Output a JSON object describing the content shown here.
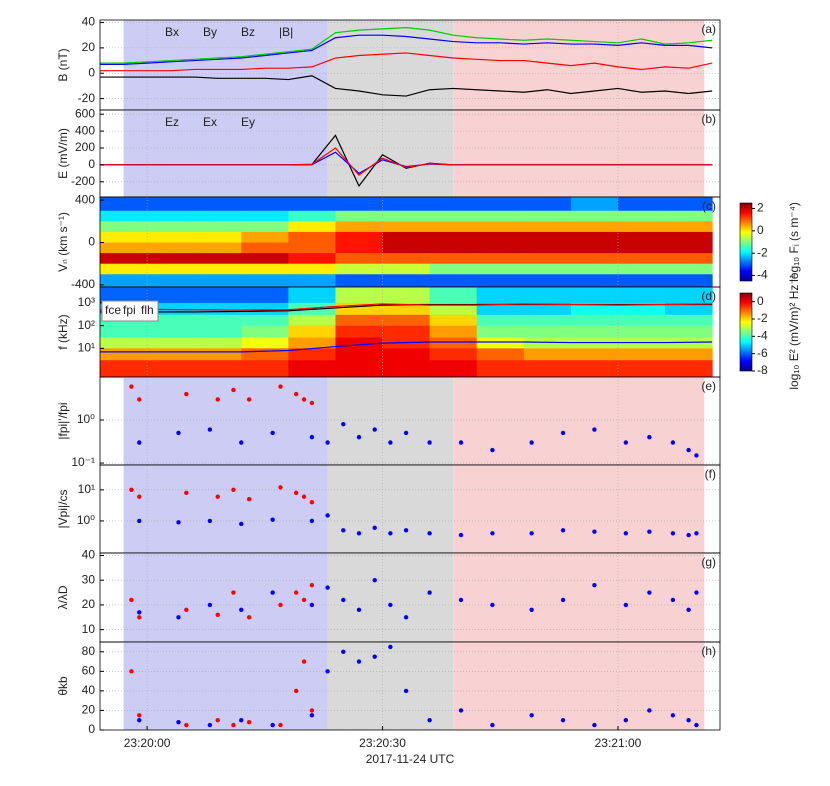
{
  "chart_data": [
    {
      "type": "line",
      "label": "(a)",
      "ylabel": "B (nT)",
      "ylim": [
        -29,
        42
      ],
      "yticks": [
        40,
        20,
        0,
        -20
      ],
      "grid": true,
      "x": [
        "23:19:54",
        "23:19:57",
        "23:20:00",
        "23:20:03",
        "23:20:06",
        "23:20:09",
        "23:20:12",
        "23:20:15",
        "23:20:18",
        "23:20:21",
        "23:20:24",
        "23:20:27",
        "23:20:30",
        "23:20:33",
        "23:20:36",
        "23:20:39",
        "23:20:42",
        "23:20:45",
        "23:20:48",
        "23:20:51",
        "23:20:54",
        "23:20:57",
        "23:21:00",
        "23:21:03",
        "23:21:06",
        "23:21:09",
        "23:21:12"
      ],
      "series": [
        {
          "name": "Bx",
          "color": "#000000",
          "values": [
            -3,
            -3,
            -3,
            -3,
            -3,
            -4,
            -4,
            -4,
            -5,
            -2,
            -12,
            -14,
            -17,
            -18,
            -13,
            -12,
            -13,
            -14,
            -15,
            -13,
            -16,
            -14,
            -12,
            -15,
            -14,
            -16,
            -14
          ]
        },
        {
          "name": "By",
          "color": "#0000ff",
          "values": [
            7,
            7,
            8,
            9,
            10,
            11,
            12,
            14,
            16,
            18,
            28,
            30,
            30,
            29,
            27,
            25,
            24,
            24,
            23,
            24,
            23,
            23,
            22,
            24,
            22,
            22,
            20
          ]
        },
        {
          "name": "Bz",
          "color": "#ff0000",
          "values": [
            2,
            2,
            2,
            2,
            3,
            3,
            3,
            4,
            4,
            5,
            12,
            14,
            15,
            16,
            14,
            12,
            11,
            10,
            10,
            8,
            6,
            8,
            5,
            3,
            5,
            4,
            8
          ]
        },
        {
          "name": "|B|",
          "color": "#00cc00",
          "values": [
            8,
            8,
            9,
            10,
            11,
            12,
            13,
            15,
            17,
            19,
            32,
            34,
            35,
            36,
            34,
            30,
            28,
            27,
            26,
            27,
            26,
            25,
            24,
            27,
            23,
            24,
            26
          ]
        }
      ]
    },
    {
      "type": "line",
      "label": "(b)",
      "ylabel": "E (mV/m)",
      "ylim": [
        -380,
        650
      ],
      "yticks": [
        600,
        400,
        200,
        0,
        -200
      ],
      "grid": true,
      "x": [
        "23:19:54",
        "23:19:57",
        "23:20:00",
        "23:20:03",
        "23:20:06",
        "23:20:09",
        "23:20:12",
        "23:20:15",
        "23:20:18",
        "23:20:21",
        "23:20:24",
        "23:20:27",
        "23:20:30",
        "23:20:33",
        "23:20:36",
        "23:20:39",
        "23:20:42",
        "23:20:45",
        "23:20:48",
        "23:20:51",
        "23:20:54",
        "23:20:57",
        "23:21:00",
        "23:21:03",
        "23:21:06",
        "23:21:09",
        "23:21:12"
      ],
      "series": [
        {
          "name": "Ez",
          "color": "#000000",
          "values": [
            0,
            0,
            0,
            0,
            0,
            0,
            0,
            0,
            0,
            5,
            350,
            -250,
            120,
            -40,
            20,
            0,
            0,
            0,
            0,
            0,
            0,
            0,
            0,
            0,
            0,
            0,
            0
          ]
        },
        {
          "name": "Ex",
          "color": "#0000ff",
          "values": [
            0,
            0,
            0,
            0,
            0,
            0,
            0,
            0,
            0,
            3,
            150,
            -100,
            60,
            -20,
            10,
            0,
            0,
            0,
            0,
            0,
            0,
            0,
            0,
            0,
            0,
            0,
            0
          ]
        },
        {
          "name": "Ey",
          "color": "#ff0000",
          "values": [
            0,
            0,
            0,
            0,
            0,
            0,
            0,
            0,
            0,
            8,
            200,
            -120,
            80,
            -30,
            15,
            0,
            0,
            0,
            0,
            0,
            0,
            0,
            0,
            0,
            0,
            0,
            0
          ]
        }
      ]
    },
    {
      "type": "heatmap",
      "label": "(c)",
      "ylabel": "Vₙ (km s⁻¹)",
      "ylim": [
        -420,
        430
      ],
      "yticks": [
        400,
        0,
        -400
      ],
      "clabel": "log₁₀ Fᵢ  (s m⁻⁴)",
      "clim": [
        -4.5,
        2.5
      ],
      "cticks": [
        2,
        0,
        -2,
        -4
      ],
      "x_edges": [
        "23:19:54",
        "23:20:00",
        "23:20:06",
        "23:20:12",
        "23:20:18",
        "23:20:24",
        "23:20:30",
        "23:20:36",
        "23:20:42",
        "23:20:48",
        "23:20:54",
        "23:21:00",
        "23:21:06",
        "23:21:12"
      ],
      "y_edges": [
        430,
        300,
        200,
        100,
        0,
        -100,
        -200,
        -300,
        -420
      ],
      "z": [
        [
          -3,
          -3,
          -3,
          -3,
          -3,
          -3,
          -3,
          -3,
          -3,
          -3,
          -2.5,
          -3,
          -3
        ],
        [
          -2,
          -2,
          -2,
          -2,
          -1.5,
          -1,
          -1,
          -1,
          -1,
          -1,
          -1,
          -1,
          -1
        ],
        [
          -1,
          -1,
          -1,
          -1,
          0,
          0.5,
          0.5,
          0.5,
          0.5,
          0.5,
          0.5,
          0.5,
          0.5
        ],
        [
          0,
          0,
          0,
          0.5,
          1,
          1.5,
          2,
          2,
          2,
          2,
          2,
          2,
          2
        ],
        [
          0.5,
          0.5,
          0.5,
          1,
          1,
          1.5,
          2,
          2,
          2,
          2,
          2,
          2,
          2
        ],
        [
          2,
          2,
          2,
          2,
          1.5,
          1,
          1,
          1,
          1,
          1,
          1,
          1,
          1
        ],
        [
          0,
          0,
          0,
          0,
          0,
          -0.5,
          -0.5,
          -1,
          -1,
          -1,
          -1,
          -1,
          -1
        ],
        [
          -2.5,
          -2.5,
          -2.5,
          -2.5,
          -2.5,
          -3,
          -3,
          -3,
          -3,
          -3,
          -3,
          -3,
          -3
        ]
      ]
    },
    {
      "type": "heatmap",
      "label": "(d)",
      "ylabel": "f (kHz)",
      "log": true,
      "ylim": [
        0.55,
        5000
      ],
      "yticks": [
        {
          "value": 1000,
          "label": "10³"
        },
        {
          "value": 100,
          "label": "10²"
        },
        {
          "value": 10,
          "label": "10¹"
        }
      ],
      "clabel": "log₁₀ E²  (mV/m)² Hz⁻¹",
      "clim": [
        -8,
        1
      ],
      "cticks": [
        0,
        -2,
        -4,
        -6,
        -8
      ],
      "x_edges": [
        "23:19:54",
        "23:20:00",
        "23:20:06",
        "23:20:12",
        "23:20:18",
        "23:20:24",
        "23:20:30",
        "23:20:36",
        "23:20:42",
        "23:20:48",
        "23:20:54",
        "23:21:00",
        "23:21:06",
        "23:21:12"
      ],
      "y_edges": [
        5000,
        1000,
        300,
        100,
        30,
        10,
        3,
        0.55
      ],
      "z": [
        [
          -6,
          -6,
          -6,
          -6,
          -5,
          -3,
          -3,
          -4,
          -5,
          -5,
          -5,
          -5,
          -5
        ],
        [
          -5,
          -5,
          -5,
          -5,
          -4,
          -2,
          -2,
          -3,
          -5,
          -5,
          -4.5,
          -4.5,
          -5
        ],
        [
          -4,
          -4,
          -4,
          -4,
          -3,
          -1,
          -1,
          -2,
          -4,
          -4,
          -4,
          -4,
          -4
        ],
        [
          -4,
          -4,
          -4,
          -3.5,
          -2,
          -0.5,
          -0.5,
          -1.5,
          -3.5,
          -3.5,
          -3.5,
          -3.5,
          -3.5
        ],
        [
          -3,
          -3,
          -3,
          -2.5,
          -1.5,
          0,
          -0.5,
          -1,
          -2.5,
          -3,
          -3,
          -3,
          -3
        ],
        [
          -1.5,
          -1.5,
          -1.5,
          -1,
          -0.5,
          0,
          0,
          -0.5,
          -1,
          -1.5,
          -1.5,
          -1.5,
          -1.5
        ],
        [
          -0.5,
          -0.5,
          -0.5,
          -0.5,
          0,
          0,
          0,
          0,
          -0.5,
          -0.5,
          -0.5,
          -0.5,
          -0.5
        ]
      ],
      "x": [
        "23:19:54",
        "23:20:00",
        "23:20:06",
        "23:20:12",
        "23:20:18",
        "23:20:24",
        "23:20:30",
        "23:20:36",
        "23:20:42",
        "23:20:48",
        "23:20:54",
        "23:21:00",
        "23:21:06",
        "23:21:12"
      ],
      "series": [
        {
          "name": "fce",
          "color": "#000000",
          "values": [
            400,
            400,
            400,
            420,
            450,
            600,
            800,
            850,
            850,
            850,
            850,
            850,
            850,
            850
          ]
        },
        {
          "name": "fpi",
          "color": "#ff0000",
          "values": [
            500,
            520,
            500,
            480,
            500,
            700,
            900,
            800,
            800,
            900,
            850,
            800,
            850,
            900
          ]
        },
        {
          "name": "flh",
          "color": "#0000ff",
          "values": [
            7,
            7,
            7,
            7,
            8,
            12,
            17,
            19,
            19,
            19,
            18,
            18,
            18,
            19
          ]
        }
      ]
    },
    {
      "type": "scatter",
      "label": "(e)",
      "ylabel": "|fpi|'/fpi",
      "log": true,
      "ylim": [
        0.09,
        10
      ],
      "grid": true,
      "yticks": [
        {
          "value": 0.1,
          "label": "10⁻¹"
        },
        {
          "value": 1,
          "label": "10⁰"
        }
      ],
      "series": [
        {
          "color": "#ff0000",
          "x": [
            "23:19:58",
            "23:19:59",
            "23:20:05",
            "23:20:09",
            "23:20:11",
            "23:20:13",
            "23:20:17",
            "23:20:19",
            "23:20:20",
            "23:20:21"
          ],
          "values": [
            6,
            3,
            4,
            3,
            5,
            3,
            6,
            4,
            3,
            2.5
          ]
        },
        {
          "color": "#0000ff",
          "x": [
            "23:19:59",
            "23:20:04",
            "23:20:08",
            "23:20:12",
            "23:20:16",
            "23:20:21",
            "23:20:23",
            "23:20:25",
            "23:20:27",
            "23:20:29",
            "23:20:31",
            "23:20:33",
            "23:20:36",
            "23:20:40",
            "23:20:44",
            "23:20:49",
            "23:20:53",
            "23:20:57",
            "23:21:01",
            "23:21:04",
            "23:21:07",
            "23:21:09",
            "23:21:10"
          ],
          "values": [
            0.3,
            0.5,
            0.6,
            0.3,
            0.5,
            0.4,
            0.3,
            0.8,
            0.4,
            0.6,
            0.3,
            0.5,
            0.3,
            0.3,
            0.2,
            0.3,
            0.5,
            0.6,
            0.3,
            0.4,
            0.3,
            0.2,
            0.15
          ]
        }
      ]
    },
    {
      "type": "scatter",
      "label": "(f)",
      "ylabel": "|Vpi|/cs",
      "log": true,
      "ylim": [
        0.093,
        63
      ],
      "grid": true,
      "yticks": [
        {
          "value": 1,
          "label": "10⁰"
        },
        {
          "value": 10,
          "label": "10¹"
        }
      ],
      "series": [
        {
          "color": "#ff0000",
          "x": [
            "23:19:58",
            "23:19:59",
            "23:20:05",
            "23:20:09",
            "23:20:11",
            "23:20:13",
            "23:20:17",
            "23:20:19",
            "23:20:20",
            "23:20:21"
          ],
          "values": [
            10,
            6,
            8,
            6,
            10,
            5,
            12,
            8,
            6,
            4
          ]
        },
        {
          "color": "#0000ff",
          "x": [
            "23:19:59",
            "23:20:04",
            "23:20:08",
            "23:20:12",
            "23:20:16",
            "23:20:21",
            "23:20:23",
            "23:20:25",
            "23:20:27",
            "23:20:29",
            "23:20:31",
            "23:20:33",
            "23:20:36",
            "23:20:40",
            "23:20:44",
            "23:20:49",
            "23:20:53",
            "23:20:57",
            "23:21:01",
            "23:21:04",
            "23:21:07",
            "23:21:09",
            "23:21:10"
          ],
          "values": [
            1,
            0.9,
            1,
            0.8,
            1.1,
            1,
            1.5,
            0.5,
            0.4,
            0.6,
            0.4,
            0.5,
            0.4,
            0.35,
            0.4,
            0.4,
            0.5,
            0.45,
            0.4,
            0.45,
            0.4,
            0.35,
            0.4
          ]
        }
      ]
    },
    {
      "type": "scatter",
      "label": "(g)",
      "ylabel": "λ/λD",
      "ylim": [
        5,
        41
      ],
      "yticks": [
        10,
        20,
        30,
        40
      ],
      "grid": true,
      "series": [
        {
          "color": "#ff0000",
          "x": [
            "23:19:58",
            "23:19:59",
            "23:20:05",
            "23:20:09",
            "23:20:11",
            "23:20:13",
            "23:20:17",
            "23:20:19",
            "23:20:20",
            "23:20:21"
          ],
          "values": [
            22,
            15,
            18,
            16,
            25,
            15,
            20,
            25,
            22,
            28
          ]
        },
        {
          "color": "#0000ff",
          "x": [
            "23:19:59",
            "23:20:04",
            "23:20:08",
            "23:20:12",
            "23:20:16",
            "23:20:21",
            "23:20:23",
            "23:20:25",
            "23:20:27",
            "23:20:29",
            "23:20:31",
            "23:20:33",
            "23:20:36",
            "23:20:40",
            "23:20:44",
            "23:20:49",
            "23:20:53",
            "23:20:57",
            "23:21:01",
            "23:21:04",
            "23:21:07",
            "23:21:09",
            "23:21:10"
          ],
          "values": [
            17,
            15,
            20,
            18,
            25,
            20,
            27,
            22,
            18,
            30,
            20,
            15,
            25,
            22,
            20,
            18,
            22,
            28,
            20,
            25,
            22,
            18,
            25
          ]
        }
      ]
    },
    {
      "type": "scatter",
      "label": "(h)",
      "ylabel": "θkb",
      "ylim": [
        0,
        90
      ],
      "yticks": [
        0,
        20,
        40,
        60,
        80
      ],
      "grid": true,
      "series": [
        {
          "color": "#ff0000",
          "x": [
            "23:19:58",
            "23:19:59",
            "23:20:05",
            "23:20:09",
            "23:20:11",
            "23:20:13",
            "23:20:17",
            "23:20:19",
            "23:20:20",
            "23:20:21"
          ],
          "values": [
            60,
            15,
            5,
            10,
            5,
            8,
            5,
            40,
            70,
            20
          ]
        },
        {
          "color": "#0000ff",
          "x": [
            "23:19:59",
            "23:20:04",
            "23:20:08",
            "23:20:12",
            "23:20:16",
            "23:20:21",
            "23:20:23",
            "23:20:25",
            "23:20:27",
            "23:20:29",
            "23:20:31",
            "23:20:33",
            "23:20:36",
            "23:20:40",
            "23:20:44",
            "23:20:49",
            "23:20:53",
            "23:20:57",
            "23:21:01",
            "23:21:04",
            "23:21:07",
            "23:21:09",
            "23:21:10"
          ],
          "values": [
            10,
            8,
            5,
            10,
            5,
            15,
            60,
            80,
            70,
            75,
            85,
            40,
            10,
            20,
            5,
            15,
            10,
            5,
            10,
            20,
            15,
            10,
            5
          ]
        }
      ],
      "xlabel": "2017-11-24 UTC",
      "xlim": [
        "23:19:54",
        "23:21:13"
      ],
      "xticks": [
        "23:20:00",
        "23:20:30",
        "23:21:00"
      ],
      "regions": [
        {
          "start": "23:19:57",
          "end": "23:20:23",
          "color": "#ccccf5"
        },
        {
          "start": "23:20:23",
          "end": "23:20:39",
          "color": "#d9d9d9"
        },
        {
          "start": "23:20:39",
          "end": "23:21:11",
          "color": "#f8d2d2"
        }
      ]
    }
  ]
}
